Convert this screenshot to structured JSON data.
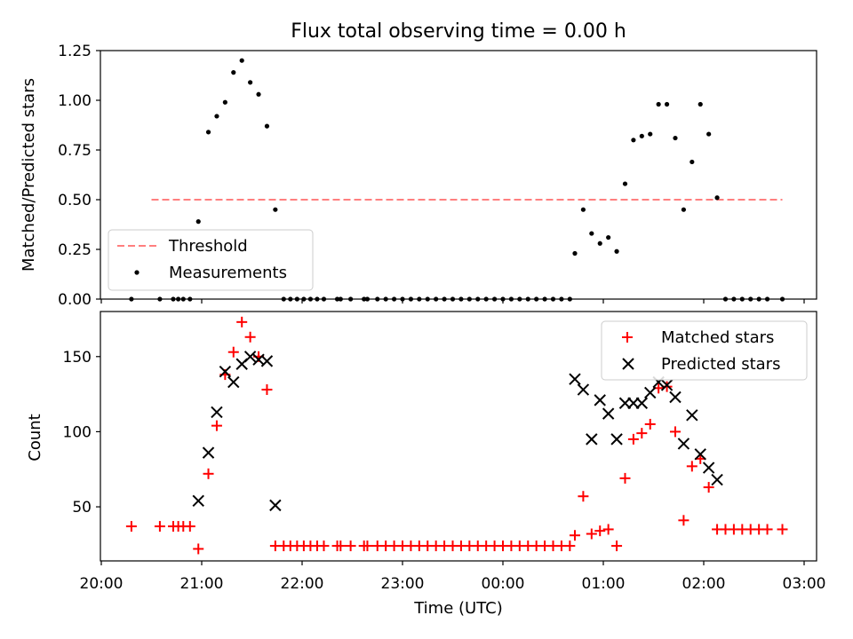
{
  "title": "Flux total observing time = 0.00 h",
  "chart_data": [
    {
      "type": "scatter",
      "panel": "top",
      "ylabel": "Matched/Predicted stars",
      "ylim": [
        0,
        1.25
      ],
      "yticks": [
        0,
        0.25,
        0.5,
        0.75,
        1.0,
        1.25
      ],
      "ytick_labels": [
        "0.00",
        "0.25",
        "0.50",
        "0.75",
        "1.00",
        "1.25"
      ],
      "threshold": {
        "name": "Threshold",
        "value": 0.5,
        "x_start": "20:30",
        "x_end": "02:47",
        "color": "#ff7f7f",
        "style": "dashed"
      },
      "series": [
        {
          "name": "Measurements",
          "color": "#000000",
          "marker": "dot",
          "points": [
            [
              "20:18",
              0.0
            ],
            [
              "20:35",
              0.0
            ],
            [
              "20:43",
              0.0
            ],
            [
              "20:46",
              0.0
            ],
            [
              "20:49",
              0.0
            ],
            [
              "20:53",
              0.0
            ],
            [
              "20:58",
              0.39
            ],
            [
              "21:04",
              0.84
            ],
            [
              "21:09",
              0.92
            ],
            [
              "21:14",
              0.99
            ],
            [
              "21:19",
              1.14
            ],
            [
              "21:24",
              1.2
            ],
            [
              "21:29",
              1.09
            ],
            [
              "21:34",
              1.03
            ],
            [
              "21:39",
              0.87
            ],
            [
              "21:44",
              0.45
            ],
            [
              "21:49",
              0.0
            ],
            [
              "21:53",
              0.0
            ],
            [
              "21:57",
              0.0
            ],
            [
              "22:01",
              0.0
            ],
            [
              "22:05",
              0.0
            ],
            [
              "22:09",
              0.0
            ],
            [
              "22:13",
              0.0
            ],
            [
              "22:21",
              0.0
            ],
            [
              "22:23",
              0.0
            ],
            [
              "22:29",
              0.0
            ],
            [
              "22:37",
              0.0
            ],
            [
              "22:39",
              0.0
            ],
            [
              "22:45",
              0.0
            ],
            [
              "22:50",
              0.0
            ],
            [
              "22:55",
              0.0
            ],
            [
              "23:00",
              0.0
            ],
            [
              "23:05",
              0.0
            ],
            [
              "23:10",
              0.0
            ],
            [
              "23:15",
              0.0
            ],
            [
              "23:20",
              0.0
            ],
            [
              "23:25",
              0.0
            ],
            [
              "23:30",
              0.0
            ],
            [
              "23:35",
              0.0
            ],
            [
              "23:40",
              0.0
            ],
            [
              "23:45",
              0.0
            ],
            [
              "23:50",
              0.0
            ],
            [
              "23:55",
              0.0
            ],
            [
              "00:00",
              0.0
            ],
            [
              "00:05",
              0.0
            ],
            [
              "00:10",
              0.0
            ],
            [
              "00:15",
              0.0
            ],
            [
              "00:20",
              0.0
            ],
            [
              "00:25",
              0.0
            ],
            [
              "00:30",
              0.0
            ],
            [
              "00:35",
              0.0
            ],
            [
              "00:40",
              0.0
            ],
            [
              "00:43",
              0.23
            ],
            [
              "00:48",
              0.45
            ],
            [
              "00:53",
              0.33
            ],
            [
              "00:58",
              0.28
            ],
            [
              "01:03",
              0.31
            ],
            [
              "01:08",
              0.24
            ],
            [
              "01:13",
              0.58
            ],
            [
              "01:18",
              0.8
            ],
            [
              "01:23",
              0.82
            ],
            [
              "01:28",
              0.83
            ],
            [
              "01:33",
              0.98
            ],
            [
              "01:38",
              0.98
            ],
            [
              "01:43",
              0.81
            ],
            [
              "01:48",
              0.45
            ],
            [
              "01:53",
              0.69
            ],
            [
              "01:58",
              0.98
            ],
            [
              "02:03",
              0.83
            ],
            [
              "02:08",
              0.51
            ],
            [
              "02:13",
              0.0
            ],
            [
              "02:18",
              0.0
            ],
            [
              "02:23",
              0.0
            ],
            [
              "02:28",
              0.0
            ],
            [
              "02:33",
              0.0
            ],
            [
              "02:38",
              0.0
            ],
            [
              "02:47",
              0.0
            ]
          ]
        }
      ],
      "legend": "lower-left"
    },
    {
      "type": "scatter",
      "panel": "bottom",
      "xlabel": "Time (UTC)",
      "ylabel": "Count",
      "ylim": [
        14,
        180
      ],
      "yticks": [
        50,
        100,
        150
      ],
      "ytick_labels": [
        "50",
        "100",
        "150"
      ],
      "xticks": [
        "20:00",
        "21:00",
        "22:00",
        "23:00",
        "00:00",
        "01:00",
        "02:00",
        "03:00"
      ],
      "series": [
        {
          "name": "Matched stars",
          "color": "#ff0000",
          "marker": "plus",
          "points": [
            [
              "20:18",
              37
            ],
            [
              "20:35",
              37
            ],
            [
              "20:43",
              37
            ],
            [
              "20:46",
              37
            ],
            [
              "20:49",
              37
            ],
            [
              "20:53",
              37
            ],
            [
              "20:58",
              22
            ],
            [
              "21:04",
              72
            ],
            [
              "21:09",
              104
            ],
            [
              "21:14",
              138
            ],
            [
              "21:19",
              153
            ],
            [
              "21:24",
              173
            ],
            [
              "21:29",
              163
            ],
            [
              "21:34",
              150
            ],
            [
              "21:39",
              128
            ],
            [
              "21:44",
              24
            ],
            [
              "21:49",
              24
            ],
            [
              "21:53",
              24
            ],
            [
              "21:57",
              24
            ],
            [
              "22:01",
              24
            ],
            [
              "22:05",
              24
            ],
            [
              "22:09",
              24
            ],
            [
              "22:13",
              24
            ],
            [
              "22:21",
              24
            ],
            [
              "22:23",
              24
            ],
            [
              "22:29",
              24
            ],
            [
              "22:37",
              24
            ],
            [
              "22:39",
              24
            ],
            [
              "22:45",
              24
            ],
            [
              "22:50",
              24
            ],
            [
              "22:55",
              24
            ],
            [
              "23:00",
              24
            ],
            [
              "23:05",
              24
            ],
            [
              "23:10",
              24
            ],
            [
              "23:15",
              24
            ],
            [
              "23:20",
              24
            ],
            [
              "23:25",
              24
            ],
            [
              "23:30",
              24
            ],
            [
              "23:35",
              24
            ],
            [
              "23:40",
              24
            ],
            [
              "23:45",
              24
            ],
            [
              "23:50",
              24
            ],
            [
              "23:55",
              24
            ],
            [
              "00:00",
              24
            ],
            [
              "00:05",
              24
            ],
            [
              "00:10",
              24
            ],
            [
              "00:15",
              24
            ],
            [
              "00:20",
              24
            ],
            [
              "00:25",
              24
            ],
            [
              "00:30",
              24
            ],
            [
              "00:35",
              24
            ],
            [
              "00:40",
              24
            ],
            [
              "00:43",
              31
            ],
            [
              "00:48",
              57
            ],
            [
              "00:53",
              32
            ],
            [
              "00:58",
              34
            ],
            [
              "01:03",
              35
            ],
            [
              "01:08",
              24
            ],
            [
              "01:13",
              69
            ],
            [
              "01:18",
              95
            ],
            [
              "01:23",
              99
            ],
            [
              "01:28",
              105
            ],
            [
              "01:33",
              129
            ],
            [
              "01:38",
              130
            ],
            [
              "01:43",
              100
            ],
            [
              "01:48",
              41
            ],
            [
              "01:53",
              77
            ],
            [
              "01:58",
              82
            ],
            [
              "02:03",
              63
            ],
            [
              "02:08",
              35
            ],
            [
              "02:13",
              35
            ],
            [
              "02:18",
              35
            ],
            [
              "02:23",
              35
            ],
            [
              "02:28",
              35
            ],
            [
              "02:33",
              35
            ],
            [
              "02:38",
              35
            ],
            [
              "02:47",
              35
            ]
          ]
        },
        {
          "name": "Predicted stars",
          "color": "#000000",
          "marker": "x",
          "points": [
            [
              "20:58",
              54
            ],
            [
              "21:04",
              86
            ],
            [
              "21:09",
              113
            ],
            [
              "21:14",
              140
            ],
            [
              "21:19",
              133
            ],
            [
              "21:24",
              145
            ],
            [
              "21:29",
              150
            ],
            [
              "21:34",
              148
            ],
            [
              "21:39",
              147
            ],
            [
              "21:44",
              51
            ],
            [
              "00:43",
              135
            ],
            [
              "00:48",
              128
            ],
            [
              "00:53",
              95
            ],
            [
              "00:58",
              121
            ],
            [
              "01:03",
              112
            ],
            [
              "01:08",
              95
            ],
            [
              "01:13",
              119
            ],
            [
              "01:18",
              119
            ],
            [
              "01:23",
              119
            ],
            [
              "01:28",
              126
            ],
            [
              "01:33",
              133
            ],
            [
              "01:38",
              131
            ],
            [
              "01:43",
              123
            ],
            [
              "01:48",
              92
            ],
            [
              "01:53",
              111
            ],
            [
              "01:58",
              85
            ],
            [
              "02:03",
              76
            ],
            [
              "02:08",
              68
            ]
          ]
        }
      ],
      "legend": "upper-right"
    }
  ]
}
